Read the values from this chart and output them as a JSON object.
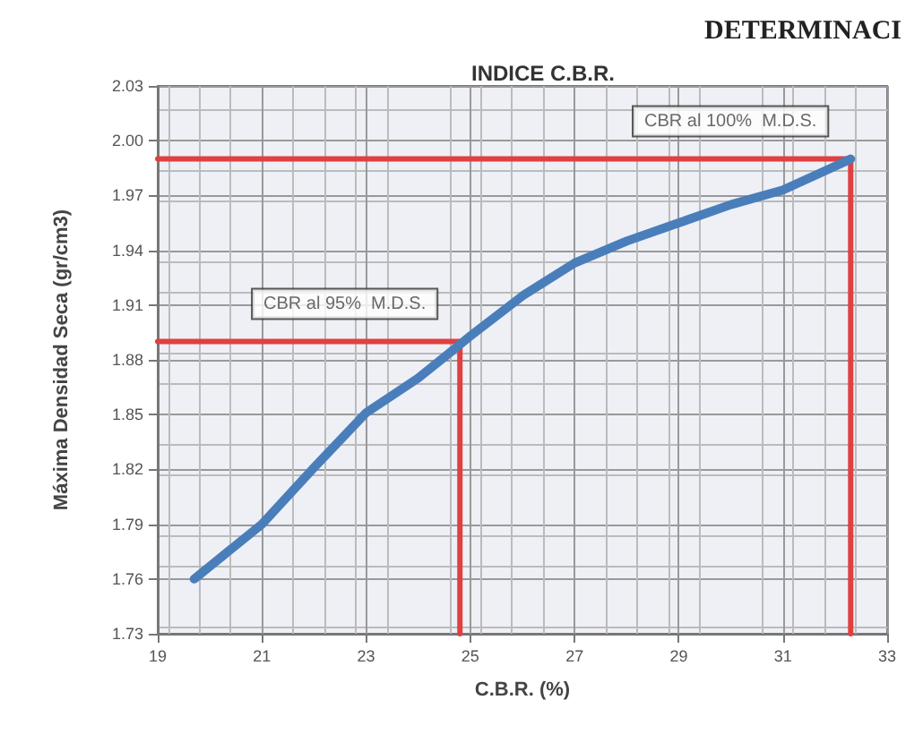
{
  "chart_data": {
    "type": "line",
    "title": "INDICE C.B.R.",
    "xlabel": "C.B.R. (%)",
    "ylabel": "Máxima Densidad Seca (gr/cm3)",
    "x": [
      19.7,
      21,
      22,
      23,
      24,
      25,
      26,
      27,
      28,
      29,
      30,
      31,
      32,
      32.3
    ],
    "series": [
      {
        "color": "#4a7ebb",
        "values": [
          1.76,
          1.79,
          1.821,
          1.851,
          1.87,
          1.893,
          1.915,
          1.933,
          1.945,
          1.955,
          1.965,
          1.973,
          1.986,
          1.99
        ]
      },
      {
        "type": "line",
        "color": "#e04040",
        "x": [
          19,
          24.8,
          24.8
        ],
        "values": [
          1.89,
          1.89,
          1.73
        ]
      },
      {
        "type": "line",
        "color": "#e04040",
        "x": [
          19,
          32.3,
          32.3
        ],
        "values": [
          1.99,
          1.99,
          1.73
        ]
      }
    ],
    "xlim": [
      19,
      33
    ],
    "xticks": [
      19,
      21,
      23,
      25,
      27,
      29,
      31,
      33
    ],
    "ylim": [
      1.73,
      2.03
    ],
    "yticks": [
      1.73,
      1.76,
      1.79,
      1.82,
      1.85,
      1.88,
      1.91,
      1.94,
      1.97,
      {
        "value": 2.0,
        "label": "2.00"
      },
      2.03
    ],
    "grid": true,
    "marker": "none",
    "line_style": "solid",
    "annotations": [
      "CBR al 95%  M.D.S.",
      "CBR al 100%  M.D.S.",
      "DETERMINACI"
    ]
  }
}
